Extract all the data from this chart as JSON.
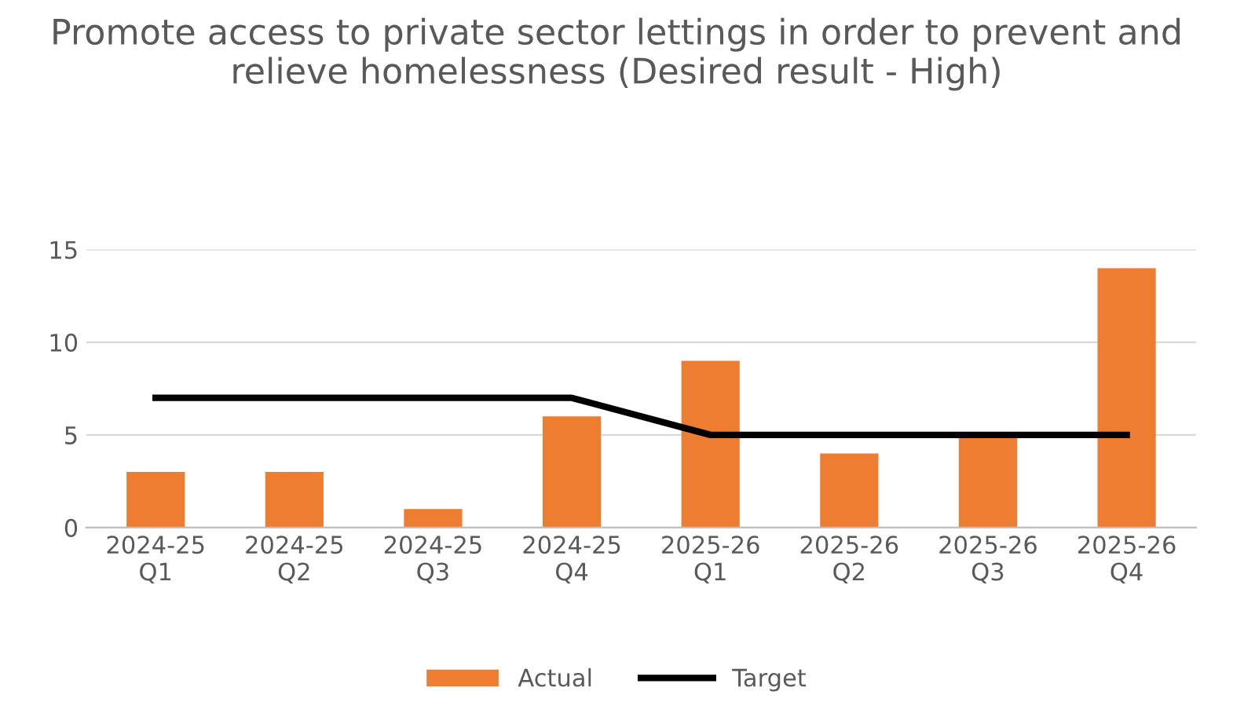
{
  "chart_data": {
    "type": "bar",
    "title": "Promote access to private sector lettings in order to prevent and relieve homelessness (Desired result - High)",
    "categories": [
      "2024-25\nQ1",
      "2024-25\nQ2",
      "2024-25\nQ3",
      "2024-25\nQ4",
      "2025-26\nQ1",
      "2025-26\nQ2",
      "2025-26\nQ3",
      "2025-26\nQ4"
    ],
    "series": [
      {
        "name": "Actual",
        "color": "#ed7d31",
        "values": [
          3,
          3,
          1,
          6,
          9,
          4,
          5,
          14
        ]
      },
      {
        "name": "Target",
        "type": "line",
        "color": "#000000",
        "values": [
          7,
          7,
          7,
          7,
          5,
          5,
          5,
          5
        ]
      }
    ],
    "ylim": [
      0,
      15
    ],
    "yticks": [
      0,
      5,
      10,
      15
    ],
    "grid": "y",
    "legend": "bottom"
  }
}
